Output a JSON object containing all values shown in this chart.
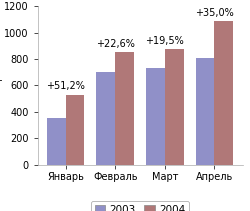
{
  "categories": [
    "Январь",
    "Февраль",
    "Март",
    "Апрель"
  ],
  "values_2003": [
    350,
    700,
    735,
    805
  ],
  "values_2004": [
    530,
    855,
    875,
    1085
  ],
  "labels": [
    "+51,2%",
    "+22,6%",
    "+19,5%",
    "+35,0%"
  ],
  "color_2003": "#9090c8",
  "color_2004": "#b07878",
  "bg_color": "#ffffff",
  "ylabel": "T",
  "ylim": [
    0,
    1200
  ],
  "yticks": [
    0,
    200,
    400,
    600,
    800,
    1000,
    1200
  ],
  "legend_2003": "2003",
  "legend_2004": "2004",
  "bar_width": 0.38,
  "label_fontsize": 7.0,
  "tick_fontsize": 7.0,
  "legend_fontsize": 7.5
}
